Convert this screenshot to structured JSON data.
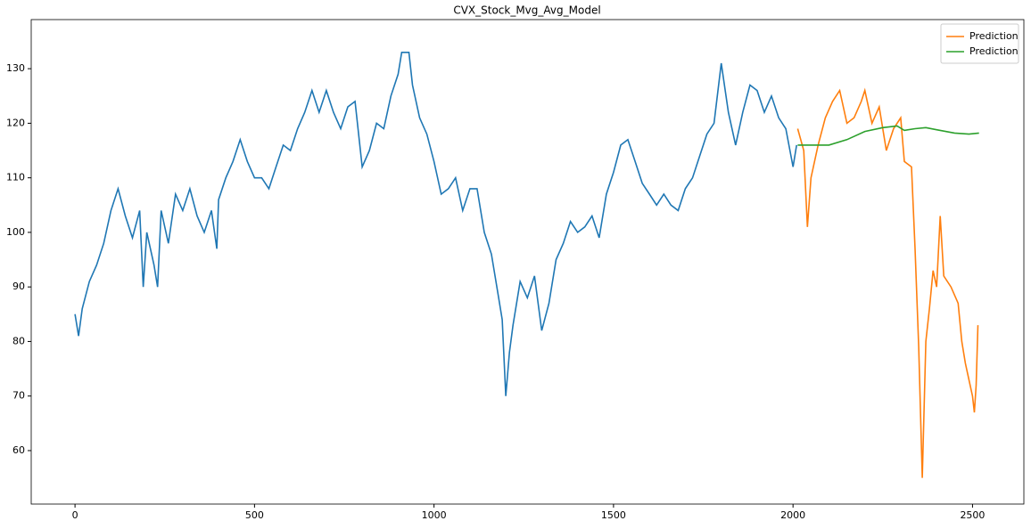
{
  "chart_data": {
    "type": "line",
    "title": "CVX_Stock_Mvg_Avg_Model",
    "xlim": [
      -122,
      2643
    ],
    "ylim": [
      50.2,
      139
    ],
    "xticks": [
      0,
      500,
      1000,
      1500,
      2000,
      2500
    ],
    "yticks": [
      60,
      70,
      80,
      90,
      100,
      110,
      120,
      130
    ],
    "grid": false,
    "legend": "upper right",
    "series": [
      {
        "color": "#1f77b4",
        "x": [
          0,
          10,
          20,
          40,
          60,
          80,
          100,
          120,
          140,
          160,
          180,
          190,
          200,
          220,
          230,
          240,
          260,
          280,
          300,
          320,
          340,
          360,
          380,
          395,
          400,
          420,
          440,
          460,
          480,
          500,
          520,
          540,
          560,
          580,
          600,
          620,
          640,
          660,
          680,
          700,
          720,
          740,
          760,
          780,
          800,
          820,
          840,
          860,
          880,
          900,
          910,
          930,
          940,
          960,
          980,
          1000,
          1020,
          1040,
          1060,
          1080,
          1100,
          1120,
          1140,
          1160,
          1180,
          1190,
          1200,
          1210,
          1220,
          1240,
          1260,
          1280,
          1300,
          1320,
          1340,
          1360,
          1380,
          1400,
          1420,
          1440,
          1460,
          1480,
          1500,
          1520,
          1540,
          1560,
          1580,
          1600,
          1620,
          1640,
          1660,
          1680,
          1700,
          1720,
          1740,
          1760,
          1780,
          1800,
          1820,
          1840,
          1860,
          1880,
          1900,
          1920,
          1940,
          1960,
          1980,
          2000,
          2010
        ],
        "values": [
          85,
          81,
          86,
          91,
          94,
          98,
          104,
          108,
          103,
          99,
          104,
          90,
          100,
          94,
          90,
          104,
          98,
          107,
          104,
          108,
          103,
          100,
          104,
          97,
          106,
          110,
          113,
          117,
          113,
          110,
          110,
          108,
          112,
          116,
          115,
          119,
          122,
          126,
          122,
          126,
          122,
          119,
          123,
          124,
          112,
          115,
          120,
          119,
          125,
          129,
          133,
          133,
          127,
          121,
          118,
          113,
          107,
          108,
          110,
          104,
          108,
          108,
          100,
          96,
          88,
          84,
          70,
          78,
          83,
          91,
          88,
          92,
          82,
          87,
          95,
          98,
          102,
          100,
          101,
          103,
          99,
          107,
          111,
          116,
          117,
          113,
          109,
          107,
          105,
          107,
          105,
          104,
          108,
          110,
          114,
          118,
          120,
          131,
          122,
          116,
          122,
          127,
          126,
          122,
          125,
          121,
          119,
          112,
          116
        ]
      },
      {
        "name": "Prediction",
        "color": "#ff7f0e",
        "x": [
          2013,
          2030,
          2040,
          2050,
          2070,
          2090,
          2110,
          2130,
          2150,
          2170,
          2190,
          2200,
          2220,
          2240,
          2260,
          2280,
          2300,
          2310,
          2330,
          2340,
          2350,
          2360,
          2370,
          2380,
          2390,
          2400,
          2410,
          2420,
          2440,
          2460,
          2470,
          2480,
          2490,
          2500,
          2505,
          2510,
          2515
        ],
        "values": [
          119,
          115,
          101,
          110,
          116,
          121,
          124,
          126,
          120,
          121,
          124,
          126,
          120,
          123,
          115,
          119,
          121,
          113,
          112,
          97,
          79,
          55,
          80,
          86,
          93,
          90,
          103,
          92,
          90,
          87,
          80,
          76,
          73,
          70,
          67,
          72,
          83
        ]
      },
      {
        "name": "Prediction",
        "color": "#2ca02c",
        "x": [
          2013,
          2100,
          2150,
          2200,
          2250,
          2290,
          2310,
          2340,
          2370,
          2400,
          2450,
          2490,
          2518
        ],
        "values": [
          116,
          116,
          117,
          118.5,
          119.2,
          119.5,
          118.7,
          119,
          119.2,
          118.8,
          118.2,
          118,
          118.2
        ]
      }
    ]
  }
}
